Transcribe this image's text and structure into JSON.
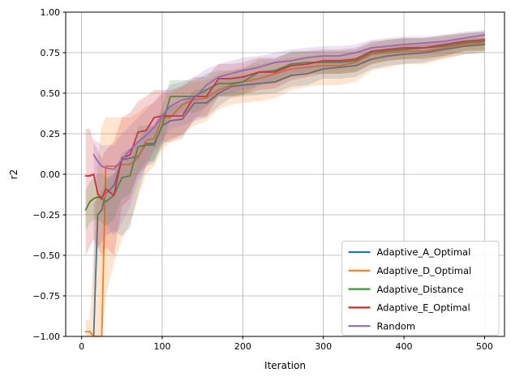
{
  "figure": {
    "background": "#ffffff"
  },
  "style": {
    "grid_color": "#b0b0b0",
    "spine_color": "#000000",
    "text_color": "#000000",
    "tick_label_color": "#000000",
    "legend_bg": "#ffffff",
    "legend_border": "#cccccc"
  },
  "chart_data": {
    "type": "line",
    "title": "",
    "xlabel": "Iteration",
    "ylabel": "r2",
    "xlim": [
      -19.75,
      524.75
    ],
    "ylim": [
      -1.0,
      1.0
    ],
    "grid": true,
    "legend_position": "lower right",
    "band_opacity": 0.2,
    "x_ticks": [
      0,
      100,
      200,
      300,
      400,
      500
    ],
    "x_tick_labels": [
      "0",
      "100",
      "200",
      "300",
      "400",
      "500"
    ],
    "y_ticks": [
      -1.0,
      -0.75,
      -0.5,
      -0.25,
      0.0,
      0.25,
      0.5,
      0.75,
      1.0
    ],
    "y_tick_labels": [
      "−1.00",
      "−0.75",
      "−0.50",
      "−0.25",
      "0.00",
      "0.25",
      "0.50",
      "0.75",
      "1.00"
    ],
    "legend_entries": [
      "Adaptive_A_Optimal",
      "Adaptive_D_Optimal",
      "Adaptive_Distance",
      "Adaptive_E_Optimal",
      "Random"
    ],
    "x": [
      5,
      10,
      15,
      20,
      25,
      30,
      40,
      50,
      60,
      70,
      80,
      90,
      100,
      110,
      125,
      140,
      155,
      170,
      185,
      200,
      220,
      240,
      260,
      280,
      300,
      320,
      340,
      360,
      380,
      400,
      425,
      450,
      475,
      500
    ],
    "series": [
      {
        "name": "Adaptive_A_Optimal",
        "color": "#1f77b4",
        "values": [
          null,
          null,
          -1.0,
          -0.25,
          -0.22,
          -0.12,
          -0.07,
          0.09,
          0.1,
          0.11,
          0.19,
          0.19,
          0.3,
          0.33,
          0.34,
          0.44,
          0.44,
          0.5,
          0.54,
          0.55,
          0.56,
          0.57,
          0.61,
          0.62,
          0.65,
          0.66,
          0.67,
          0.71,
          0.73,
          0.74,
          0.75,
          0.77,
          0.79,
          0.8
        ],
        "band_lower": [
          null,
          null,
          -1.0,
          -0.45,
          -0.42,
          -0.38,
          -0.35,
          -0.38,
          -0.33,
          -0.12,
          0.05,
          0.07,
          0.18,
          0.22,
          0.24,
          0.33,
          0.35,
          0.42,
          0.47,
          0.48,
          0.49,
          0.5,
          0.54,
          0.55,
          0.59,
          0.59,
          0.6,
          0.65,
          0.67,
          0.68,
          0.69,
          0.72,
          0.74,
          0.75
        ],
        "band_upper": [
          null,
          null,
          -0.18,
          -0.15,
          -0.1,
          -0.04,
          0.0,
          0.13,
          0.16,
          0.2,
          0.28,
          0.3,
          0.38,
          0.42,
          0.44,
          0.52,
          0.53,
          0.58,
          0.6,
          0.61,
          0.62,
          0.63,
          0.67,
          0.68,
          0.71,
          0.71,
          0.72,
          0.76,
          0.78,
          0.79,
          0.8,
          0.81,
          0.83,
          0.84
        ]
      },
      {
        "name": "Adaptive_D_Optimal",
        "color": "#ff7f0e",
        "values": [
          -0.97,
          -0.97,
          -1.0,
          -1.0,
          -1.0,
          0.05,
          0.05,
          0.06,
          0.06,
          0.1,
          0.21,
          0.22,
          0.35,
          0.35,
          0.43,
          0.46,
          0.47,
          0.52,
          0.55,
          0.57,
          0.59,
          0.62,
          0.65,
          0.66,
          0.67,
          0.67,
          0.69,
          0.74,
          0.75,
          0.76,
          0.76,
          0.78,
          0.8,
          0.81
        ],
        "band_lower": [
          -1.0,
          -1.0,
          -1.0,
          -1.0,
          -1.0,
          -0.75,
          -0.55,
          -0.4,
          -0.3,
          -0.15,
          0.0,
          0.05,
          0.15,
          0.2,
          0.25,
          0.3,
          0.33,
          0.4,
          0.43,
          0.44,
          0.45,
          0.47,
          0.52,
          0.54,
          0.55,
          0.55,
          0.57,
          0.64,
          0.66,
          0.68,
          0.68,
          0.71,
          0.74,
          0.75
        ],
        "band_upper": [
          -0.9,
          -0.9,
          -0.5,
          0.1,
          0.3,
          0.35,
          0.35,
          0.35,
          0.35,
          0.38,
          0.42,
          0.44,
          0.5,
          0.5,
          0.55,
          0.57,
          0.58,
          0.62,
          0.64,
          0.66,
          0.68,
          0.7,
          0.72,
          0.73,
          0.74,
          0.74,
          0.75,
          0.79,
          0.8,
          0.81,
          0.81,
          0.82,
          0.84,
          0.85
        ]
      },
      {
        "name": "Adaptive_Distance",
        "color": "#2ca02c",
        "values": [
          -0.22,
          -0.17,
          -0.15,
          -0.14,
          -0.15,
          -0.17,
          -0.13,
          -0.02,
          -0.01,
          0.17,
          0.18,
          0.18,
          0.3,
          0.48,
          0.48,
          0.48,
          0.52,
          0.56,
          0.56,
          0.57,
          0.63,
          0.64,
          0.68,
          0.69,
          0.69,
          0.69,
          0.7,
          0.75,
          0.76,
          0.77,
          0.78,
          0.79,
          0.81,
          0.82
        ],
        "band_lower": [
          -0.35,
          -0.3,
          -0.28,
          -0.28,
          -0.3,
          -0.32,
          -0.28,
          -0.15,
          -0.12,
          0.0,
          0.08,
          0.08,
          0.18,
          0.35,
          0.38,
          0.38,
          0.42,
          0.48,
          0.48,
          0.49,
          0.55,
          0.56,
          0.6,
          0.62,
          0.62,
          0.62,
          0.63,
          0.68,
          0.7,
          0.71,
          0.72,
          0.73,
          0.76,
          0.76
        ],
        "band_upper": [
          -0.1,
          -0.05,
          -0.02,
          0.0,
          0.0,
          -0.02,
          0.0,
          0.1,
          0.1,
          0.3,
          0.3,
          0.3,
          0.42,
          0.58,
          0.58,
          0.58,
          0.62,
          0.64,
          0.64,
          0.65,
          0.71,
          0.71,
          0.76,
          0.76,
          0.76,
          0.76,
          0.77,
          0.81,
          0.83,
          0.84,
          0.84,
          0.85,
          0.87,
          0.88
        ]
      },
      {
        "name": "Adaptive_E_Optimal",
        "color": "#d62728",
        "values": [
          -0.01,
          -0.01,
          0.0,
          -0.12,
          -0.15,
          -0.09,
          -0.13,
          0.1,
          0.12,
          0.26,
          0.27,
          0.35,
          0.36,
          0.36,
          0.36,
          0.48,
          0.48,
          0.59,
          0.59,
          0.6,
          0.63,
          0.63,
          0.67,
          0.68,
          0.7,
          0.7,
          0.71,
          0.76,
          0.77,
          0.78,
          0.78,
          0.8,
          0.82,
          0.83
        ],
        "band_lower": [
          -0.5,
          -0.45,
          -0.4,
          -0.45,
          -0.5,
          -0.45,
          -0.5,
          -0.2,
          -0.15,
          0.0,
          0.05,
          0.15,
          0.2,
          0.2,
          0.22,
          0.35,
          0.36,
          0.48,
          0.48,
          0.49,
          0.52,
          0.53,
          0.58,
          0.6,
          0.62,
          0.62,
          0.63,
          0.68,
          0.7,
          0.71,
          0.71,
          0.73,
          0.76,
          0.77
        ],
        "band_upper": [
          0.28,
          0.28,
          0.2,
          0.15,
          0.1,
          0.15,
          0.2,
          0.35,
          0.38,
          0.45,
          0.48,
          0.52,
          0.52,
          0.52,
          0.54,
          0.6,
          0.6,
          0.68,
          0.68,
          0.69,
          0.72,
          0.72,
          0.75,
          0.76,
          0.77,
          0.77,
          0.78,
          0.82,
          0.83,
          0.84,
          0.84,
          0.86,
          0.87,
          0.88
        ]
      },
      {
        "name": "Random",
        "color": "#9467bd",
        "values": [
          null,
          null,
          0.12,
          0.08,
          0.05,
          0.04,
          0.03,
          0.09,
          0.15,
          0.2,
          0.24,
          0.29,
          0.36,
          0.42,
          0.46,
          0.47,
          0.55,
          0.6,
          0.62,
          0.64,
          0.66,
          0.69,
          0.7,
          0.72,
          0.73,
          0.73,
          0.75,
          0.78,
          0.79,
          0.8,
          0.81,
          0.82,
          0.84,
          0.86
        ],
        "band_lower": [
          null,
          null,
          -0.05,
          -0.1,
          -0.2,
          -0.3,
          -0.38,
          -0.3,
          -0.2,
          -0.05,
          0.05,
          0.1,
          0.2,
          0.28,
          0.3,
          0.33,
          0.42,
          0.48,
          0.5,
          0.52,
          0.55,
          0.58,
          0.62,
          0.63,
          0.65,
          0.65,
          0.67,
          0.71,
          0.72,
          0.74,
          0.74,
          0.76,
          0.79,
          0.8
        ],
        "band_upper": [
          null,
          null,
          0.22,
          0.2,
          0.18,
          0.18,
          0.18,
          0.25,
          0.3,
          0.35,
          0.4,
          0.45,
          0.5,
          0.55,
          0.57,
          0.6,
          0.65,
          0.68,
          0.7,
          0.72,
          0.73,
          0.75,
          0.77,
          0.78,
          0.79,
          0.79,
          0.8,
          0.83,
          0.84,
          0.85,
          0.85,
          0.86,
          0.88,
          0.89
        ]
      }
    ]
  }
}
